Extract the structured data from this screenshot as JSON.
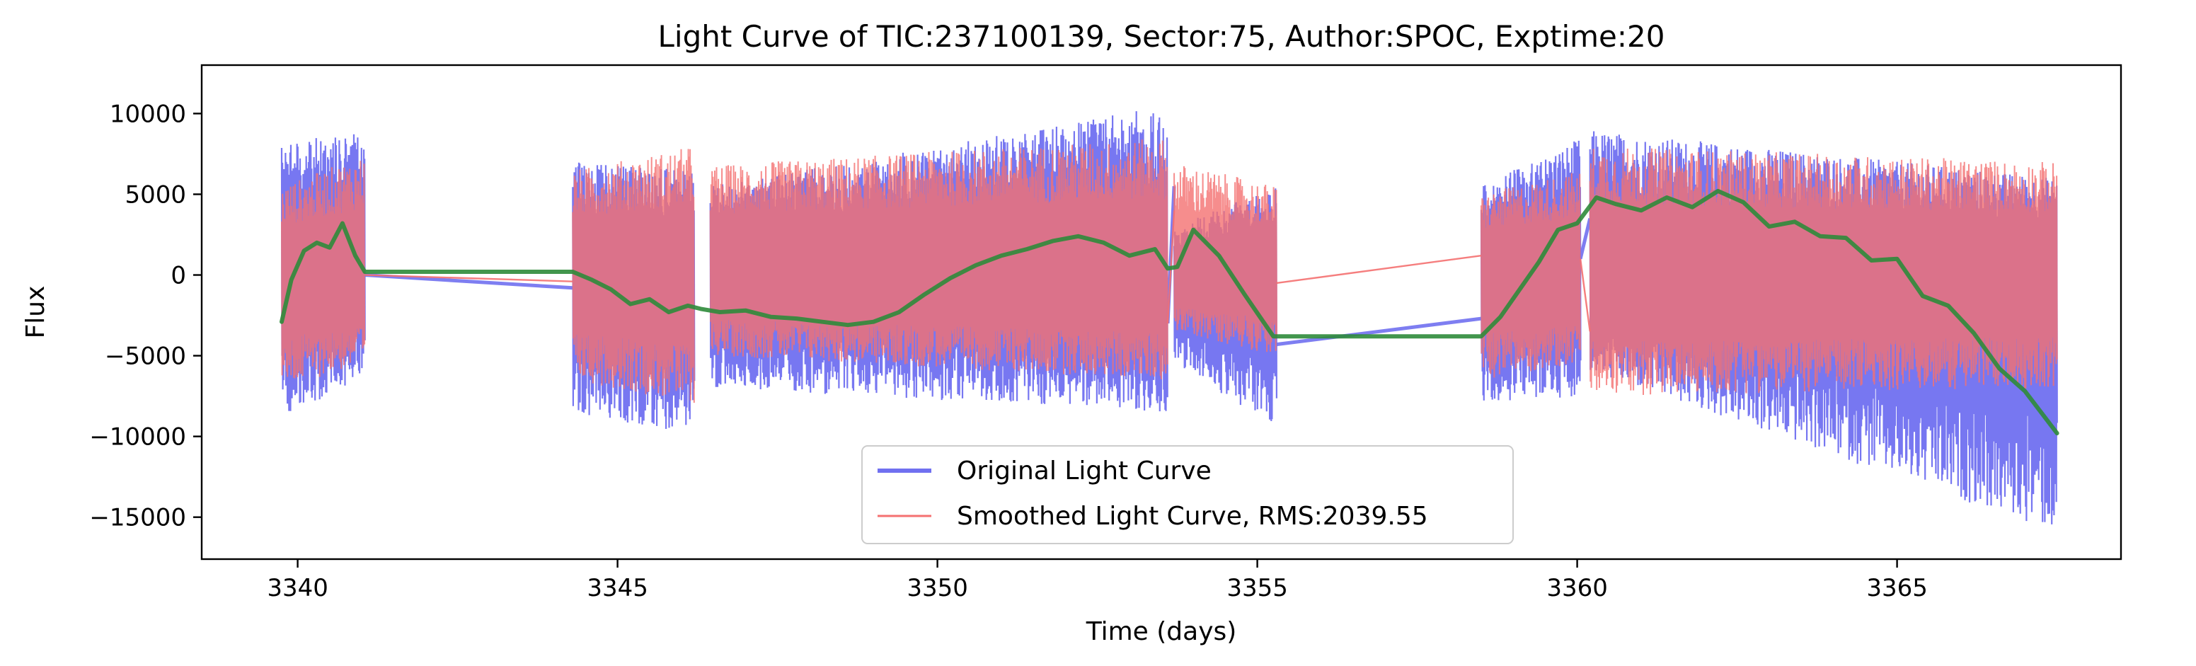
{
  "chart_data": {
    "type": "line",
    "title": "Light Curve of TIC:237100139, Sector:75, Author:SPOC, Exptime:20",
    "xlabel": "Time (days)",
    "ylabel": "Flux",
    "xlim": [
      3338.5,
      3368.5
    ],
    "ylim": [
      -17600,
      13000
    ],
    "xticks": [
      3340,
      3345,
      3350,
      3355,
      3360,
      3365
    ],
    "yticks": [
      -15000,
      -10000,
      -5000,
      0,
      5000,
      10000
    ],
    "xtick_labels": [
      "3340",
      "3345",
      "3350",
      "3355",
      "3360",
      "3365"
    ],
    "ytick_labels": [
      "−15000",
      "−10000",
      "−5000",
      "0",
      "5000",
      "10000"
    ],
    "grid": false,
    "legend_position": "lower-center",
    "segments": [
      {
        "start": 3339.75,
        "end": 3341.05,
        "orig_upper": [
          8000,
          9200
        ],
        "orig_lower": [
          -9000,
          -6200
        ],
        "smooth_upper": [
          5500,
          7500
        ],
        "smooth_lower": [
          -7000,
          -5500
        ]
      },
      {
        "start": 3344.3,
        "end": 3346.2,
        "orig_upper": [
          7000,
          6500
        ],
        "orig_lower": [
          -8500,
          -10000
        ],
        "smooth_upper": [
          6500,
          8000
        ],
        "smooth_lower": [
          -6500,
          -8000
        ]
      },
      {
        "start": 3346.45,
        "end": 3353.6,
        "orig_upper": [
          5500,
          10500
        ],
        "orig_lower": [
          -7000,
          -8500
        ],
        "smooth_upper": [
          6800,
          8500
        ],
        "smooth_lower": [
          -5000,
          -6500
        ]
      },
      {
        "start": 3353.7,
        "end": 3355.3,
        "orig_upper": [
          3000,
          5500
        ],
        "orig_lower": [
          -5500,
          -9500
        ],
        "smooth_upper": [
          7000,
          5500
        ],
        "smooth_lower": [
          -3500,
          -5000
        ]
      },
      {
        "start": 3358.5,
        "end": 3360.05,
        "orig_upper": [
          5500,
          8500
        ],
        "orig_lower": [
          -8000,
          -7500
        ],
        "smooth_upper": [
          5000,
          6500
        ],
        "smooth_lower": [
          -6500,
          -5500
        ]
      },
      {
        "start": 3360.2,
        "end": 3367.5,
        "orig_upper": [
          9000,
          6000
        ],
        "orig_lower": [
          -6000,
          -16000
        ],
        "smooth_upper": [
          8000,
          7000
        ],
        "smooth_lower": [
          -7500,
          -7000
        ]
      }
    ],
    "gap_lines": {
      "original": [
        [
          3341.05,
          3344.3,
          0,
          -800
        ],
        [
          3353.6,
          3353.7,
          -3000,
          5500
        ],
        [
          3355.3,
          3358.5,
          -4300,
          -2700
        ],
        [
          3360.05,
          3360.2,
          1000,
          3500
        ]
      ],
      "smoothed": [
        [
          3341.05,
          3344.3,
          0,
          -400
        ],
        [
          3353.6,
          3353.7,
          -3000,
          4000
        ],
        [
          3355.3,
          3358.5,
          -500,
          1200
        ],
        [
          3360.05,
          3360.2,
          1000,
          -3500
        ]
      ]
    },
    "series": [
      {
        "name": "Original Light Curve",
        "style": "band",
        "color": "#7070f0"
      },
      {
        "name": "Smoothed Light Curve, RMS:2039.55",
        "style": "band",
        "color": "#f47070"
      },
      {
        "name": "",
        "style": "trend",
        "color": "#2e8b3a",
        "x": [
          3339.75,
          3339.9,
          3340.1,
          3340.3,
          3340.5,
          3340.7,
          3340.9,
          3341.05,
          3344.3,
          3344.6,
          3344.9,
          3345.2,
          3345.5,
          3345.8,
          3346.1,
          3346.3,
          3346.6,
          3347.0,
          3347.4,
          3347.8,
          3348.2,
          3348.6,
          3349.0,
          3349.4,
          3349.8,
          3350.2,
          3350.6,
          3351.0,
          3351.4,
          3351.8,
          3352.2,
          3352.6,
          3353.0,
          3353.4,
          3353.6,
          3353.75,
          3354.0,
          3354.4,
          3354.8,
          3355.25,
          3358.5,
          3358.8,
          3359.1,
          3359.4,
          3359.7,
          3360.0,
          3360.3,
          3360.6,
          3361.0,
          3361.4,
          3361.8,
          3362.2,
          3362.6,
          3363.0,
          3363.4,
          3363.8,
          3364.2,
          3364.6,
          3365.0,
          3365.4,
          3365.8,
          3366.2,
          3366.6,
          3367.0,
          3367.5
        ],
        "y": [
          -2900,
          -300,
          1500,
          2000,
          1700,
          3200,
          1200,
          200,
          200,
          -300,
          -900,
          -1800,
          -1500,
          -2300,
          -1900,
          -2100,
          -2300,
          -2200,
          -2600,
          -2700,
          -2900,
          -3100,
          -2900,
          -2300,
          -1200,
          -200,
          600,
          1200,
          1600,
          2100,
          2400,
          2000,
          1200,
          1600,
          400,
          500,
          2800,
          1200,
          -1200,
          -3800,
          -3800,
          -2600,
          -900,
          800,
          2800,
          3200,
          4800,
          4400,
          4000,
          4800,
          4200,
          5200,
          4500,
          3000,
          3300,
          2400,
          2300,
          900,
          1000,
          -1300,
          -1900,
          -3600,
          -5800,
          -7200,
          -9800
        ]
      }
    ]
  }
}
